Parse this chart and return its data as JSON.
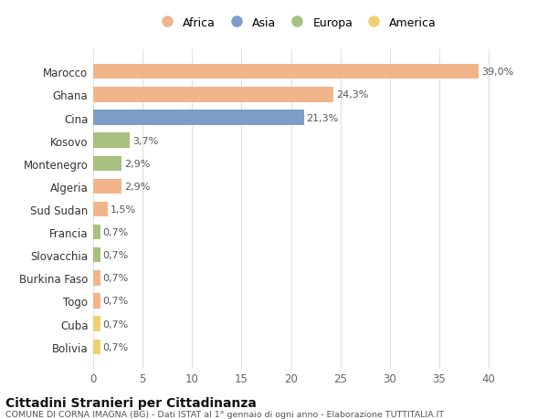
{
  "countries": [
    "Marocco",
    "Ghana",
    "Cina",
    "Kosovo",
    "Montenegro",
    "Algeria",
    "Sud Sudan",
    "Francia",
    "Slovacchia",
    "Burkina Faso",
    "Togo",
    "Cuba",
    "Bolivia"
  ],
  "values": [
    39.0,
    24.3,
    21.3,
    3.7,
    2.9,
    2.9,
    1.5,
    0.7,
    0.7,
    0.7,
    0.7,
    0.7,
    0.7
  ],
  "labels": [
    "39,0%",
    "24,3%",
    "21,3%",
    "3,7%",
    "2,9%",
    "2,9%",
    "1,5%",
    "0,7%",
    "0,7%",
    "0,7%",
    "0,7%",
    "0,7%",
    "0,7%"
  ],
  "continent": [
    "Africa",
    "Africa",
    "Asia",
    "Europa",
    "Europa",
    "Africa",
    "Africa",
    "Europa",
    "Europa",
    "Africa",
    "Africa",
    "America",
    "America"
  ],
  "colors": {
    "Africa": "#F2B48A",
    "Asia": "#7B9DC8",
    "Europa": "#A8C080",
    "America": "#F0D070"
  },
  "legend_order": [
    "Africa",
    "Asia",
    "Europa",
    "America"
  ],
  "title": "Cittadini Stranieri per Cittadinanza",
  "subtitle": "COMUNE DI CORNA IMAGNA (BG) - Dati ISTAT al 1° gennaio di ogni anno - Elaborazione TUTTITALIA.IT",
  "xlim": [
    0,
    41
  ],
  "xticks": [
    0,
    5,
    10,
    15,
    20,
    25,
    30,
    35,
    40
  ],
  "bg_color": "#ffffff",
  "grid_color": "#e0e0e0",
  "bar_height": 0.65
}
